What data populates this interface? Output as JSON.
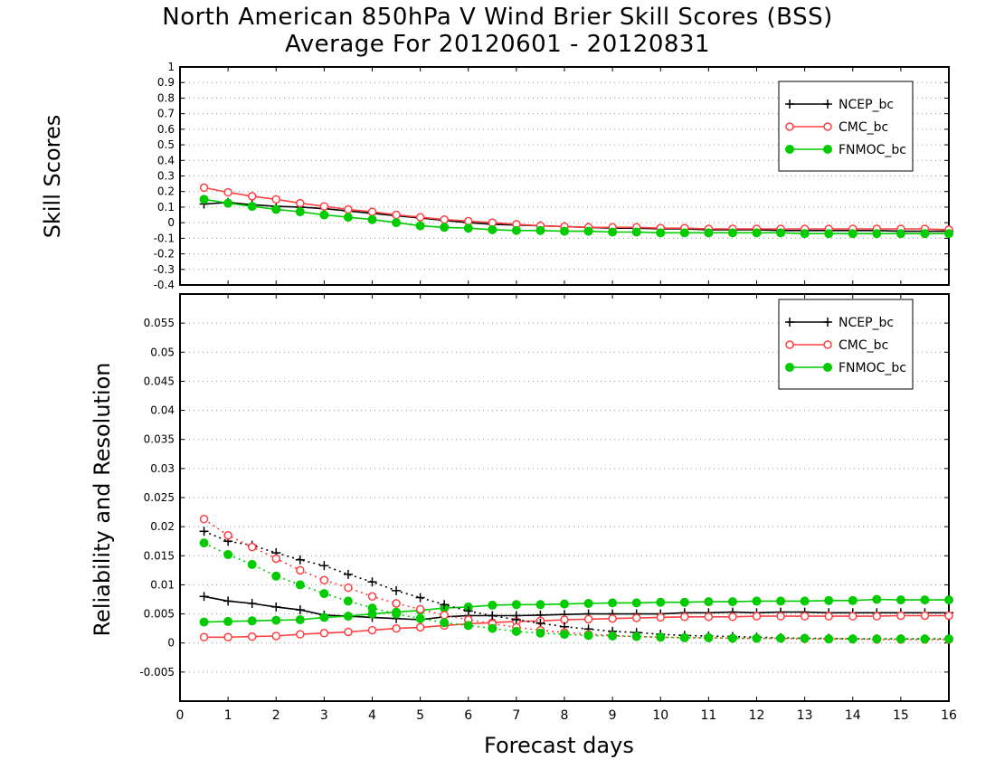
{
  "title_line1": "North American 850hPa V Wind Brier Skill Scores (BSS)",
  "title_line2": "Average For 20120601 - 20120831",
  "xlabel": "Forecast days",
  "chart_data": [
    {
      "type": "line",
      "ylabel": "Skill Scores",
      "xlim": [
        0,
        16
      ],
      "ylim": [
        -0.4,
        1
      ],
      "xticks": [
        0,
        1,
        2,
        3,
        4,
        5,
        6,
        7,
        8,
        9,
        10,
        11,
        12,
        13,
        14,
        15,
        16
      ],
      "yticks": [
        -0.4,
        -0.3,
        -0.2,
        -0.1,
        0,
        0.1,
        0.2,
        0.3,
        0.4,
        0.5,
        0.6,
        0.7,
        0.8,
        0.9,
        1
      ],
      "ytick_labels": [
        "-0.4",
        "-0.3",
        "-0.2",
        "-0.1",
        "0",
        "0.1",
        "0.2",
        "0.3",
        "0.4",
        "0.5",
        "0.6",
        "0.7",
        "0.8",
        "0.9",
        "1"
      ],
      "grid": true,
      "legend_position": "top-right",
      "x": [
        0.5,
        1,
        1.5,
        2,
        2.5,
        3,
        3.5,
        4,
        4.5,
        5,
        5.5,
        6,
        6.5,
        7,
        7.5,
        8,
        8.5,
        9,
        9.5,
        10,
        10.5,
        11,
        11.5,
        12,
        12.5,
        13,
        13.5,
        14,
        14.5,
        15,
        15.5,
        16
      ],
      "series": [
        {
          "name": "NCEP_bc",
          "color": "#000000",
          "marker": "plus",
          "line": "solid",
          "values": [
            0.12,
            0.13,
            0.115,
            0.105,
            0.1,
            0.09,
            0.075,
            0.06,
            0.045,
            0.03,
            0.015,
            0.0,
            -0.01,
            -0.015,
            -0.02,
            -0.025,
            -0.03,
            -0.035,
            -0.035,
            -0.04,
            -0.04,
            -0.045,
            -0.045,
            -0.045,
            -0.05,
            -0.05,
            -0.05,
            -0.05,
            -0.05,
            -0.055,
            -0.055,
            -0.055
          ]
        },
        {
          "name": "CMC_bc",
          "color": "#ff4040",
          "marker": "circle-open",
          "line": "solid",
          "values": [
            0.225,
            0.195,
            0.17,
            0.15,
            0.125,
            0.105,
            0.085,
            0.07,
            0.05,
            0.035,
            0.02,
            0.01,
            0.0,
            -0.01,
            -0.02,
            -0.025,
            -0.03,
            -0.03,
            -0.03,
            -0.035,
            -0.035,
            -0.04,
            -0.04,
            -0.04,
            -0.04,
            -0.04,
            -0.04,
            -0.04,
            -0.04,
            -0.04,
            -0.04,
            -0.045
          ]
        },
        {
          "name": "FNMOC_bc",
          "color": "#00cc00",
          "marker": "circle-filled",
          "line": "solid",
          "values": [
            0.15,
            0.125,
            0.105,
            0.085,
            0.07,
            0.05,
            0.035,
            0.02,
            0.0,
            -0.02,
            -0.03,
            -0.035,
            -0.045,
            -0.05,
            -0.05,
            -0.055,
            -0.055,
            -0.06,
            -0.06,
            -0.065,
            -0.065,
            -0.065,
            -0.065,
            -0.065,
            -0.065,
            -0.07,
            -0.07,
            -0.07,
            -0.07,
            -0.07,
            -0.07,
            -0.07
          ]
        }
      ]
    },
    {
      "type": "line",
      "ylabel": "Reliability and Resolution",
      "xlim": [
        0,
        16
      ],
      "ylim": [
        -0.01,
        0.06
      ],
      "xticks": [
        0,
        1,
        2,
        3,
        4,
        5,
        6,
        7,
        8,
        9,
        10,
        11,
        12,
        13,
        14,
        15,
        16
      ],
      "yticks": [
        -0.005,
        0,
        0.005,
        0.01,
        0.015,
        0.02,
        0.025,
        0.03,
        0.035,
        0.04,
        0.045,
        0.05,
        0.055
      ],
      "ytick_labels": [
        "-0.005",
        "0",
        "0.005",
        "0.01",
        "0.015",
        "0.02",
        "0.025",
        "0.03",
        "0.035",
        "0.04",
        "0.045",
        "0.05",
        "0.055"
      ],
      "grid": true,
      "legend_position": "top-right",
      "x": [
        0.5,
        1,
        1.5,
        2,
        2.5,
        3,
        3.5,
        4,
        4.5,
        5,
        5.5,
        6,
        6.5,
        7,
        7.5,
        8,
        8.5,
        9,
        9.5,
        10,
        10.5,
        11,
        11.5,
        12,
        12.5,
        13,
        13.5,
        14,
        14.5,
        15,
        15.5,
        16
      ],
      "series": [
        {
          "name": "NCEP_bc",
          "color": "#000000",
          "marker": "plus",
          "line": "solid",
          "legend": true,
          "values": [
            0.008,
            0.0072,
            0.0068,
            0.0062,
            0.0057,
            0.0048,
            0.0046,
            0.0044,
            0.0042,
            0.004,
            0.0045,
            0.0047,
            0.0047,
            0.0047,
            0.0048,
            0.0049,
            0.005,
            0.005,
            0.005,
            0.005,
            0.0052,
            0.0052,
            0.0053,
            0.0052,
            0.0053,
            0.0053,
            0.0052,
            0.0052,
            0.0052,
            0.0052,
            0.0052,
            0.0052
          ]
        },
        {
          "name": "CMC_bc",
          "color": "#ff4040",
          "marker": "circle-open",
          "line": "solid",
          "legend": true,
          "values": [
            0.001,
            0.001,
            0.0011,
            0.0012,
            0.0015,
            0.0017,
            0.0019,
            0.0022,
            0.0025,
            0.0027,
            0.003,
            0.0033,
            0.0035,
            0.0037,
            0.0038,
            0.004,
            0.0041,
            0.0042,
            0.0043,
            0.0044,
            0.0045,
            0.0045,
            0.0045,
            0.0046,
            0.0046,
            0.0046,
            0.0046,
            0.0046,
            0.0046,
            0.0047,
            0.0047,
            0.0047
          ]
        },
        {
          "name": "FNMOC_bc",
          "color": "#00cc00",
          "marker": "circle-filled",
          "line": "solid",
          "legend": true,
          "values": [
            0.0036,
            0.0037,
            0.0038,
            0.0039,
            0.004,
            0.0044,
            0.0046,
            0.005,
            0.0053,
            0.0056,
            0.006,
            0.0062,
            0.0065,
            0.0066,
            0.0066,
            0.0067,
            0.0068,
            0.0069,
            0.0069,
            0.007,
            0.007,
            0.0071,
            0.0071,
            0.0072,
            0.0072,
            0.0072,
            0.0073,
            0.0073,
            0.0075,
            0.0074,
            0.0074,
            0.0074
          ]
        },
        {
          "name": "",
          "color": "#000000",
          "marker": "plus",
          "line": "dotted",
          "legend": false,
          "values": [
            0.0192,
            0.0175,
            0.0168,
            0.0155,
            0.0143,
            0.0133,
            0.0118,
            0.0105,
            0.009,
            0.0078,
            0.0066,
            0.0055,
            0.0047,
            0.004,
            0.0034,
            0.0028,
            0.0024,
            0.002,
            0.0018,
            0.0015,
            0.0013,
            0.0012,
            0.0011,
            0.001,
            0.0009,
            0.0008,
            0.0008,
            0.0007,
            0.0007,
            0.0007,
            0.0007,
            0.0007
          ]
        },
        {
          "name": "",
          "color": "#ff4040",
          "marker": "circle-open",
          "line": "dotted",
          "legend": false,
          "values": [
            0.0213,
            0.0185,
            0.0165,
            0.0145,
            0.0125,
            0.0108,
            0.0095,
            0.008,
            0.0068,
            0.0058,
            0.0048,
            0.004,
            0.0033,
            0.0027,
            0.0022,
            0.0018,
            0.0015,
            0.0013,
            0.0011,
            0.001,
            0.0009,
            0.0009,
            0.0008,
            0.0008,
            0.0008,
            0.0007,
            0.0007,
            0.0007,
            0.0006,
            0.0006,
            0.0006,
            0.0006
          ]
        },
        {
          "name": "",
          "color": "#00cc00",
          "marker": "circle-filled",
          "line": "dotted",
          "legend": false,
          "values": [
            0.0172,
            0.0152,
            0.0135,
            0.0115,
            0.01,
            0.0085,
            0.0072,
            0.006,
            0.005,
            0.0042,
            0.0035,
            0.003,
            0.0025,
            0.002,
            0.0017,
            0.0015,
            0.0013,
            0.0012,
            0.0011,
            0.001,
            0.0009,
            0.0009,
            0.0008,
            0.0008,
            0.0008,
            0.0008,
            0.0007,
            0.0007,
            0.0007,
            0.0007,
            0.0007,
            0.0007
          ]
        }
      ]
    }
  ]
}
